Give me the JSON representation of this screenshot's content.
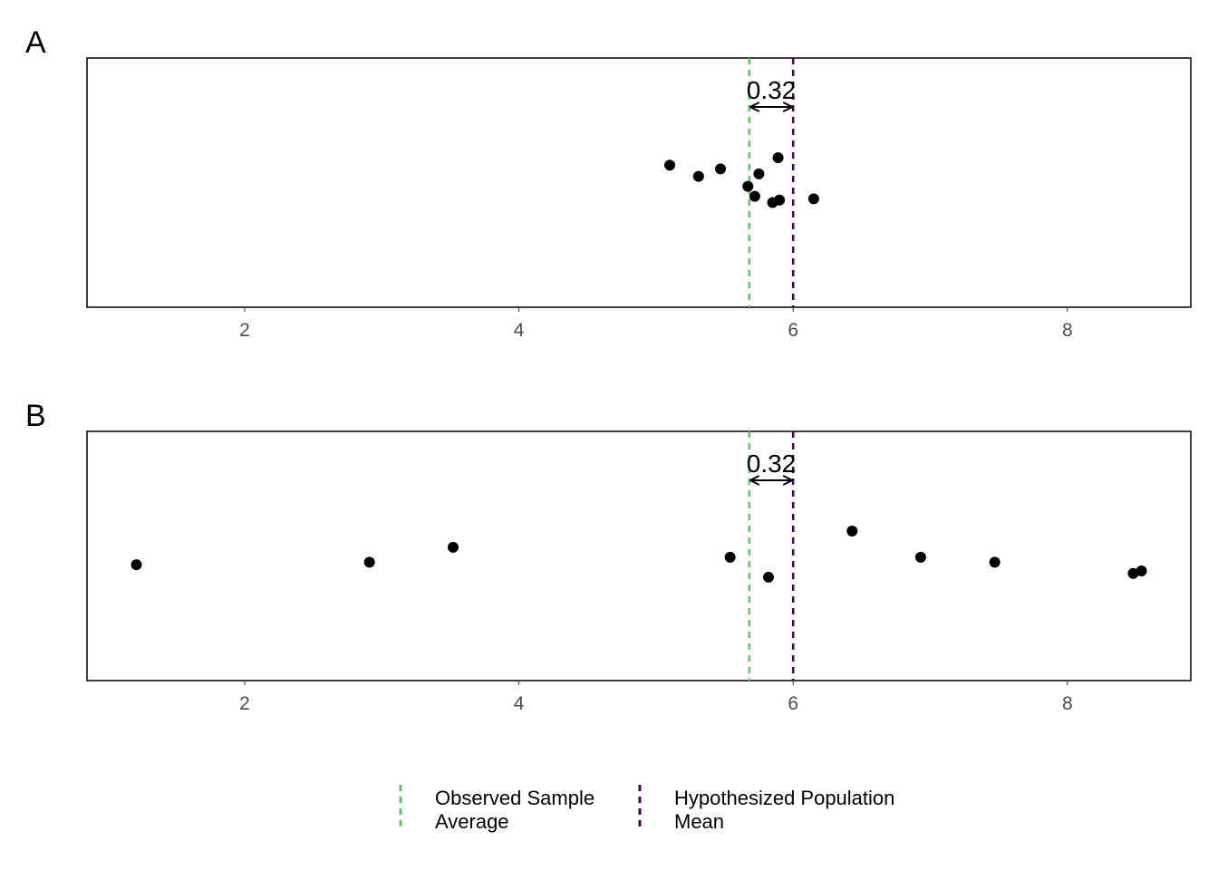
{
  "legend": {
    "items": [
      {
        "line1": "Observed Sample",
        "line2": "Average",
        "color": "#5BC863"
      },
      {
        "line1": "Hypothesized Population",
        "line2": "Mean",
        "color": "#440154"
      }
    ]
  },
  "chart_data": [
    {
      "type": "scatter",
      "panel": "A",
      "xlim": [
        0.85,
        8.9
      ],
      "ylim": [
        0,
        1
      ],
      "x_ticks": [
        2,
        4,
        6,
        8
      ],
      "x_tick_labels": [
        "2",
        "4",
        "6",
        "8"
      ],
      "grid": false,
      "sample_mean": 5.68,
      "population_mean": 6.0,
      "difference_label": "0.32",
      "points": [
        {
          "x": 5.1,
          "y": 0.57
        },
        {
          "x": 5.31,
          "y": 0.525
        },
        {
          "x": 5.47,
          "y": 0.555
        },
        {
          "x": 5.67,
          "y": 0.485
        },
        {
          "x": 5.72,
          "y": 0.445
        },
        {
          "x": 5.75,
          "y": 0.535
        },
        {
          "x": 5.85,
          "y": 0.42
        },
        {
          "x": 5.89,
          "y": 0.6
        },
        {
          "x": 5.9,
          "y": 0.43
        },
        {
          "x": 6.15,
          "y": 0.435
        }
      ]
    },
    {
      "type": "scatter",
      "panel": "B",
      "xlim": [
        0.85,
        8.9
      ],
      "ylim": [
        0,
        1
      ],
      "x_ticks": [
        2,
        4,
        6,
        8
      ],
      "x_tick_labels": [
        "2",
        "4",
        "6",
        "8"
      ],
      "grid": false,
      "sample_mean": 5.68,
      "population_mean": 6.0,
      "difference_label": "0.32",
      "points": [
        {
          "x": 1.21,
          "y": 0.465
        },
        {
          "x": 2.91,
          "y": 0.475
        },
        {
          "x": 3.52,
          "y": 0.535
        },
        {
          "x": 5.54,
          "y": 0.495
        },
        {
          "x": 5.82,
          "y": 0.415
        },
        {
          "x": 6.43,
          "y": 0.6
        },
        {
          "x": 6.93,
          "y": 0.495
        },
        {
          "x": 7.47,
          "y": 0.475
        },
        {
          "x": 8.48,
          "y": 0.43
        },
        {
          "x": 8.54,
          "y": 0.44
        }
      ]
    }
  ]
}
